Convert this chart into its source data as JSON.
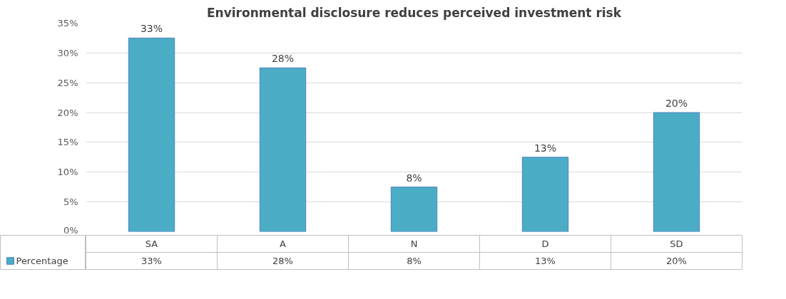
{
  "chart_data": {
    "type": "bar",
    "title": "Environmental disclosure reduces perceived investment risk",
    "categories": [
      "SA",
      "A",
      "N",
      "D",
      "SD"
    ],
    "series": [
      {
        "name": "Percentage",
        "color": "#4bacc6",
        "values": [
          32.5,
          27.5,
          7.5,
          12.5,
          20
        ],
        "value_labels": [
          "33%",
          "28%",
          "8%",
          "13%",
          "20%"
        ]
      }
    ],
    "ylim": [
      0,
      35
    ],
    "yticks": [
      {
        "value": 0,
        "label": "0%"
      },
      {
        "value": 5,
        "label": "5%"
      },
      {
        "value": 10,
        "label": "10%"
      },
      {
        "value": 15,
        "label": "15%"
      },
      {
        "value": 20,
        "label": "20%"
      },
      {
        "value": 25,
        "label": "25%"
      },
      {
        "value": 30,
        "label": "30%"
      },
      {
        "value": 35,
        "label": "35%"
      }
    ],
    "grid": "y",
    "legend": "bottom"
  }
}
